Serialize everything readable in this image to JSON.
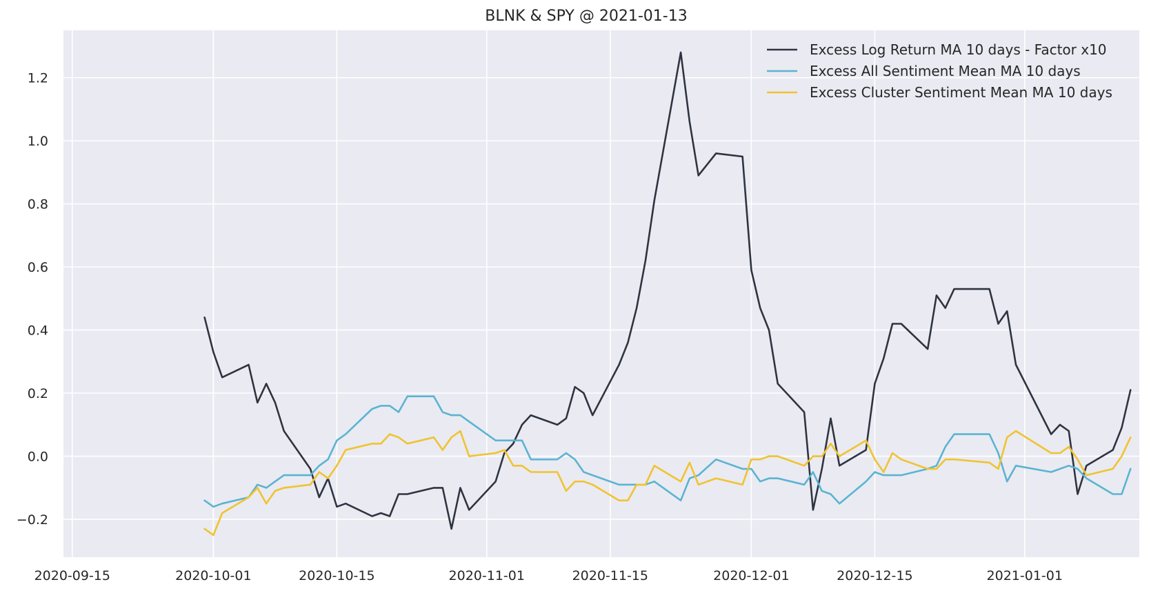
{
  "chart_data": {
    "type": "line",
    "title": "BLNK & SPY @ 2021-01-13",
    "xlabel": "",
    "ylabel": "",
    "x_range": [
      "2020-09-14",
      "2021-01-14"
    ],
    "ylim": [
      -0.32,
      1.35
    ],
    "x_ticks": [
      "2020-09-15",
      "2020-10-01",
      "2020-10-15",
      "2020-11-01",
      "2020-11-15",
      "2020-12-01",
      "2020-12-15",
      "2021-01-01"
    ],
    "y_ticks": [
      -0.2,
      0.0,
      0.2,
      0.4,
      0.6,
      0.8,
      1.0,
      1.2
    ],
    "y_tick_labels": [
      "−0.2",
      "0.0",
      "0.2",
      "0.4",
      "0.6",
      "0.8",
      "1.0",
      "1.2"
    ],
    "grid": true,
    "legend_position": "top-right",
    "series": [
      {
        "name": "Excess Log Return MA 10 days - Factor x10",
        "color": "#2e3440",
        "points": [
          [
            "2020-09-30",
            0.44
          ],
          [
            "2020-10-01",
            0.33
          ],
          [
            "2020-10-02",
            0.25
          ],
          [
            "2020-10-05",
            0.29
          ],
          [
            "2020-10-06",
            0.17
          ],
          [
            "2020-10-07",
            0.23
          ],
          [
            "2020-10-08",
            0.17
          ],
          [
            "2020-10-09",
            0.08
          ],
          [
            "2020-10-12",
            -0.04
          ],
          [
            "2020-10-13",
            -0.13
          ],
          [
            "2020-10-14",
            -0.07
          ],
          [
            "2020-10-15",
            -0.16
          ],
          [
            "2020-10-16",
            -0.15
          ],
          [
            "2020-10-19",
            -0.19
          ],
          [
            "2020-10-20",
            -0.18
          ],
          [
            "2020-10-21",
            -0.19
          ],
          [
            "2020-10-22",
            -0.12
          ],
          [
            "2020-10-23",
            -0.12
          ],
          [
            "2020-10-26",
            -0.1
          ],
          [
            "2020-10-27",
            -0.1
          ],
          [
            "2020-10-28",
            -0.23
          ],
          [
            "2020-10-29",
            -0.1
          ],
          [
            "2020-10-30",
            -0.17
          ],
          [
            "2020-11-02",
            -0.08
          ],
          [
            "2020-11-03",
            0.01
          ],
          [
            "2020-11-04",
            0.04
          ],
          [
            "2020-11-05",
            0.1
          ],
          [
            "2020-11-06",
            0.13
          ],
          [
            "2020-11-09",
            0.1
          ],
          [
            "2020-11-10",
            0.12
          ],
          [
            "2020-11-11",
            0.22
          ],
          [
            "2020-11-12",
            0.2
          ],
          [
            "2020-11-13",
            0.13
          ],
          [
            "2020-11-16",
            0.29
          ],
          [
            "2020-11-17",
            0.36
          ],
          [
            "2020-11-18",
            0.47
          ],
          [
            "2020-11-19",
            0.62
          ],
          [
            "2020-11-20",
            0.81
          ],
          [
            "2020-11-23",
            1.28
          ],
          [
            "2020-11-24",
            1.06
          ],
          [
            "2020-11-25",
            0.89
          ],
          [
            "2020-11-27",
            0.96
          ],
          [
            "2020-11-30",
            0.95
          ],
          [
            "2020-12-01",
            0.59
          ],
          [
            "2020-12-02",
            0.47
          ],
          [
            "2020-12-03",
            0.4
          ],
          [
            "2020-12-04",
            0.23
          ],
          [
            "2020-12-07",
            0.14
          ],
          [
            "2020-12-08",
            -0.17
          ],
          [
            "2020-12-09",
            -0.04
          ],
          [
            "2020-12-10",
            0.12
          ],
          [
            "2020-12-11",
            -0.03
          ],
          [
            "2020-12-14",
            0.02
          ],
          [
            "2020-12-15",
            0.23
          ],
          [
            "2020-12-16",
            0.31
          ],
          [
            "2020-12-17",
            0.42
          ],
          [
            "2020-12-18",
            0.42
          ],
          [
            "2020-12-21",
            0.34
          ],
          [
            "2020-12-22",
            0.51
          ],
          [
            "2020-12-23",
            0.47
          ],
          [
            "2020-12-24",
            0.53
          ],
          [
            "2020-12-28",
            0.53
          ],
          [
            "2020-12-29",
            0.42
          ],
          [
            "2020-12-30",
            0.46
          ],
          [
            "2020-12-31",
            0.29
          ],
          [
            "2021-01-04",
            0.07
          ],
          [
            "2021-01-05",
            0.1
          ],
          [
            "2021-01-06",
            0.08
          ],
          [
            "2021-01-07",
            -0.12
          ],
          [
            "2021-01-08",
            -0.03
          ],
          [
            "2021-01-11",
            0.02
          ],
          [
            "2021-01-12",
            0.09
          ],
          [
            "2021-01-13",
            0.21
          ]
        ]
      },
      {
        "name": "Excess All Sentiment Mean MA 10 days",
        "color": "#5ab4d1",
        "points": [
          [
            "2020-09-30",
            -0.14
          ],
          [
            "2020-10-01",
            -0.16
          ],
          [
            "2020-10-02",
            -0.15
          ],
          [
            "2020-10-05",
            -0.13
          ],
          [
            "2020-10-06",
            -0.09
          ],
          [
            "2020-10-07",
            -0.1
          ],
          [
            "2020-10-08",
            -0.08
          ],
          [
            "2020-10-09",
            -0.06
          ],
          [
            "2020-10-12",
            -0.06
          ],
          [
            "2020-10-13",
            -0.03
          ],
          [
            "2020-10-14",
            -0.01
          ],
          [
            "2020-10-15",
            0.05
          ],
          [
            "2020-10-16",
            0.07
          ],
          [
            "2020-10-19",
            0.15
          ],
          [
            "2020-10-20",
            0.16
          ],
          [
            "2020-10-21",
            0.16
          ],
          [
            "2020-10-22",
            0.14
          ],
          [
            "2020-10-23",
            0.19
          ],
          [
            "2020-10-26",
            0.19
          ],
          [
            "2020-10-27",
            0.14
          ],
          [
            "2020-10-28",
            0.13
          ],
          [
            "2020-10-29",
            0.13
          ],
          [
            "2020-10-30",
            0.11
          ],
          [
            "2020-11-02",
            0.05
          ],
          [
            "2020-11-03",
            0.05
          ],
          [
            "2020-11-04",
            0.05
          ],
          [
            "2020-11-05",
            0.05
          ],
          [
            "2020-11-06",
            -0.01
          ],
          [
            "2020-11-09",
            -0.01
          ],
          [
            "2020-11-10",
            0.01
          ],
          [
            "2020-11-11",
            -0.01
          ],
          [
            "2020-11-12",
            -0.05
          ],
          [
            "2020-11-13",
            -0.06
          ],
          [
            "2020-11-16",
            -0.09
          ],
          [
            "2020-11-17",
            -0.09
          ],
          [
            "2020-11-18",
            -0.09
          ],
          [
            "2020-11-19",
            -0.09
          ],
          [
            "2020-11-20",
            -0.08
          ],
          [
            "2020-11-23",
            -0.14
          ],
          [
            "2020-11-24",
            -0.07
          ],
          [
            "2020-11-25",
            -0.06
          ],
          [
            "2020-11-27",
            -0.01
          ],
          [
            "2020-11-30",
            -0.04
          ],
          [
            "2020-12-01",
            -0.04
          ],
          [
            "2020-12-02",
            -0.08
          ],
          [
            "2020-12-03",
            -0.07
          ],
          [
            "2020-12-04",
            -0.07
          ],
          [
            "2020-12-07",
            -0.09
          ],
          [
            "2020-12-08",
            -0.05
          ],
          [
            "2020-12-09",
            -0.11
          ],
          [
            "2020-12-10",
            -0.12
          ],
          [
            "2020-12-11",
            -0.15
          ],
          [
            "2020-12-14",
            -0.08
          ],
          [
            "2020-12-15",
            -0.05
          ],
          [
            "2020-12-16",
            -0.06
          ],
          [
            "2020-12-17",
            -0.06
          ],
          [
            "2020-12-18",
            -0.06
          ],
          [
            "2020-12-21",
            -0.04
          ],
          [
            "2020-12-22",
            -0.03
          ],
          [
            "2020-12-23",
            0.03
          ],
          [
            "2020-12-24",
            0.07
          ],
          [
            "2020-12-28",
            0.07
          ],
          [
            "2020-12-29",
            0.01
          ],
          [
            "2020-12-30",
            -0.08
          ],
          [
            "2020-12-31",
            -0.03
          ],
          [
            "2021-01-04",
            -0.05
          ],
          [
            "2021-01-05",
            -0.04
          ],
          [
            "2021-01-06",
            -0.03
          ],
          [
            "2021-01-07",
            -0.04
          ],
          [
            "2021-01-08",
            -0.07
          ],
          [
            "2021-01-11",
            -0.12
          ],
          [
            "2021-01-12",
            -0.12
          ],
          [
            "2021-01-13",
            -0.04
          ]
        ]
      },
      {
        "name": "Excess Cluster Sentiment Mean MA 10 days",
        "color": "#f0c330",
        "points": [
          [
            "2020-09-30",
            -0.23
          ],
          [
            "2020-10-01",
            -0.25
          ],
          [
            "2020-10-02",
            -0.18
          ],
          [
            "2020-10-05",
            -0.13
          ],
          [
            "2020-10-06",
            -0.1
          ],
          [
            "2020-10-07",
            -0.15
          ],
          [
            "2020-10-08",
            -0.11
          ],
          [
            "2020-10-09",
            -0.1
          ],
          [
            "2020-10-12",
            -0.09
          ],
          [
            "2020-10-13",
            -0.05
          ],
          [
            "2020-10-14",
            -0.07
          ],
          [
            "2020-10-15",
            -0.03
          ],
          [
            "2020-10-16",
            0.02
          ],
          [
            "2020-10-19",
            0.04
          ],
          [
            "2020-10-20",
            0.04
          ],
          [
            "2020-10-21",
            0.07
          ],
          [
            "2020-10-22",
            0.06
          ],
          [
            "2020-10-23",
            0.04
          ],
          [
            "2020-10-26",
            0.06
          ],
          [
            "2020-10-27",
            0.02
          ],
          [
            "2020-10-28",
            0.06
          ],
          [
            "2020-10-29",
            0.08
          ],
          [
            "2020-10-30",
            0.0
          ],
          [
            "2020-11-02",
            0.01
          ],
          [
            "2020-11-03",
            0.02
          ],
          [
            "2020-11-04",
            -0.03
          ],
          [
            "2020-11-05",
            -0.03
          ],
          [
            "2020-11-06",
            -0.05
          ],
          [
            "2020-11-09",
            -0.05
          ],
          [
            "2020-11-10",
            -0.11
          ],
          [
            "2020-11-11",
            -0.08
          ],
          [
            "2020-11-12",
            -0.08
          ],
          [
            "2020-11-13",
            -0.09
          ],
          [
            "2020-11-16",
            -0.14
          ],
          [
            "2020-11-17",
            -0.14
          ],
          [
            "2020-11-18",
            -0.09
          ],
          [
            "2020-11-19",
            -0.09
          ],
          [
            "2020-11-20",
            -0.03
          ],
          [
            "2020-11-23",
            -0.08
          ],
          [
            "2020-11-24",
            -0.02
          ],
          [
            "2020-11-25",
            -0.09
          ],
          [
            "2020-11-27",
            -0.07
          ],
          [
            "2020-11-30",
            -0.09
          ],
          [
            "2020-12-01",
            -0.01
          ],
          [
            "2020-12-02",
            -0.01
          ],
          [
            "2020-12-03",
            0.0
          ],
          [
            "2020-12-04",
            0.0
          ],
          [
            "2020-12-07",
            -0.03
          ],
          [
            "2020-12-08",
            0.0
          ],
          [
            "2020-12-09",
            0.0
          ],
          [
            "2020-12-10",
            0.04
          ],
          [
            "2020-12-11",
            0.0
          ],
          [
            "2020-12-14",
            0.05
          ],
          [
            "2020-12-15",
            -0.01
          ],
          [
            "2020-12-16",
            -0.05
          ],
          [
            "2020-12-17",
            0.01
          ],
          [
            "2020-12-18",
            -0.01
          ],
          [
            "2020-12-21",
            -0.04
          ],
          [
            "2020-12-22",
            -0.04
          ],
          [
            "2020-12-23",
            -0.01
          ],
          [
            "2020-12-24",
            -0.01
          ],
          [
            "2020-12-28",
            -0.02
          ],
          [
            "2020-12-29",
            -0.04
          ],
          [
            "2020-12-30",
            0.06
          ],
          [
            "2020-12-31",
            0.08
          ],
          [
            "2021-01-04",
            0.01
          ],
          [
            "2021-01-05",
            0.01
          ],
          [
            "2021-01-06",
            0.03
          ],
          [
            "2021-01-07",
            -0.01
          ],
          [
            "2021-01-08",
            -0.06
          ],
          [
            "2021-01-11",
            -0.04
          ],
          [
            "2021-01-12",
            0.0
          ],
          [
            "2021-01-13",
            0.06
          ]
        ]
      }
    ]
  }
}
